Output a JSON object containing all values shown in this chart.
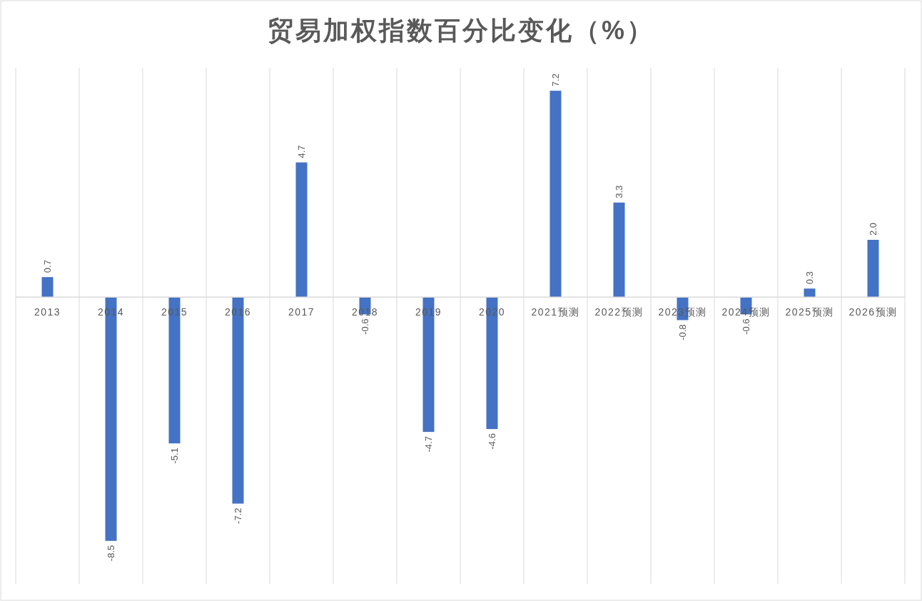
{
  "chart_data": {
    "type": "bar",
    "title": "贸易加权指数百分比变化（%）",
    "categories": [
      "2013",
      "2014",
      "2015",
      "2016",
      "2017",
      "2018",
      "2019",
      "2020",
      "2021预测",
      "2022预测",
      "2023预测",
      "2024预测",
      "2025预测",
      "2026预测"
    ],
    "values": [
      0.7,
      -8.5,
      -5.1,
      -7.2,
      4.7,
      -0.6,
      -4.7,
      -4.6,
      7.2,
      3.3,
      -0.8,
      -0.6,
      0.3,
      2.0
    ],
    "value_labels": [
      "0.7",
      "-8.5",
      "-5.1",
      "-7.2",
      "4.7",
      "-0.6",
      "-4.7",
      "-4.6",
      "7.2",
      "3.3",
      "-0.8",
      "-0.6",
      "0.3",
      "2.0"
    ],
    "color": "#4472c4",
    "ylim": [
      -10,
      8
    ],
    "grid": "x"
  }
}
